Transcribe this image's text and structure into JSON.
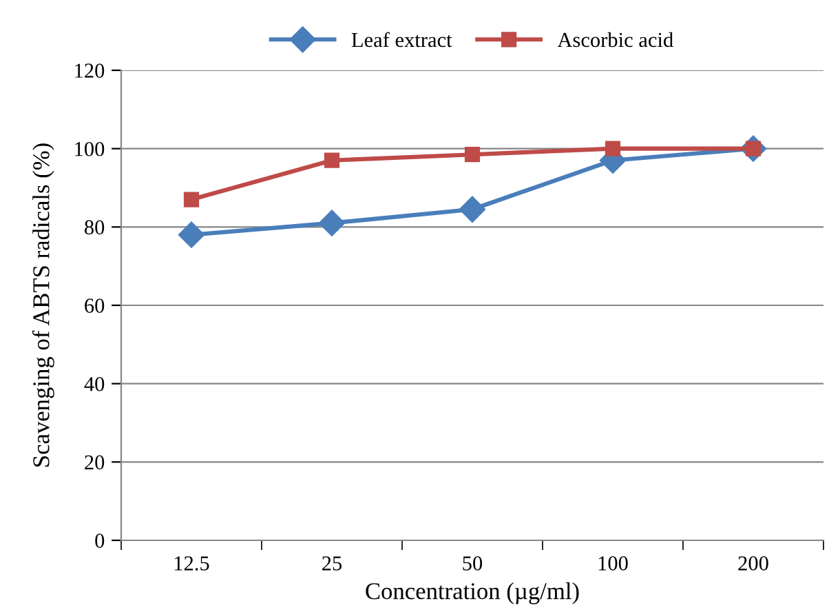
{
  "chart_data": {
    "type": "line",
    "xlabel": "Concentration (µg/ml)",
    "ylabel": "Scavenging of ABTS radicals (%)",
    "categories": [
      "12.5",
      "25",
      "50",
      "100",
      "200"
    ],
    "series": [
      {
        "name": "Leaf extract",
        "color": "#4a7ebb",
        "marker": "diamond",
        "values": [
          78,
          81,
          84.5,
          97,
          100
        ]
      },
      {
        "name": "Ascorbic acid",
        "color": "#be4b48",
        "marker": "square",
        "values": [
          87,
          97,
          98.5,
          100,
          100
        ]
      }
    ],
    "ylim": [
      0,
      120
    ],
    "yticks": [
      0,
      20,
      40,
      60,
      80,
      100,
      120
    ],
    "grid": "y",
    "legend": "top",
    "line_style": "solid"
  }
}
